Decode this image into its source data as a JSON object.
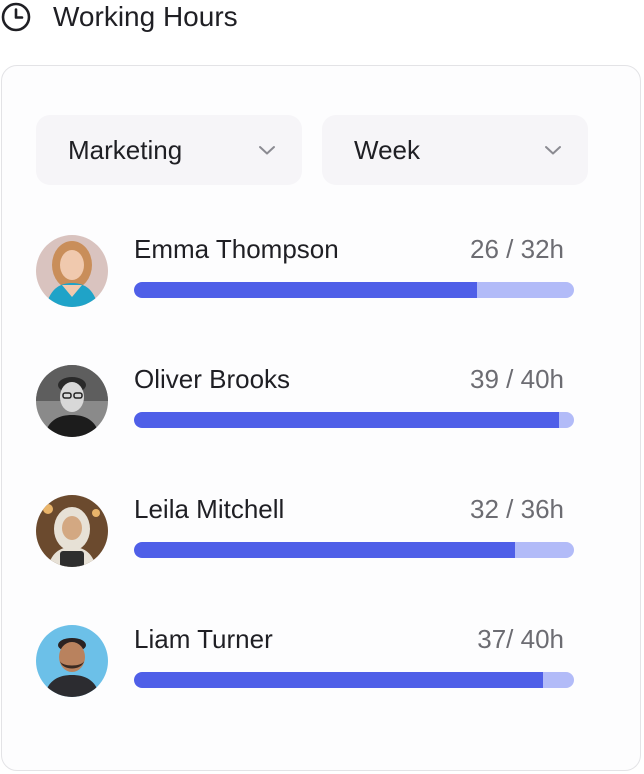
{
  "header": {
    "title": "Working Hours",
    "icon": "clock-icon"
  },
  "filters": {
    "department": {
      "value": "Marketing"
    },
    "period": {
      "value": "Week"
    }
  },
  "colors": {
    "accent": "#4f5fe8",
    "track": "#b2bbf8"
  },
  "people": [
    {
      "name": "Emma Thompson",
      "hours_text": "26 / 32h",
      "progress": 0.78
    },
    {
      "name": "Oliver Brooks",
      "hours_text": "39 / 40h",
      "progress": 0.965
    },
    {
      "name": "Leila Mitchell",
      "hours_text": "32 / 36h",
      "progress": 0.865
    },
    {
      "name": "Liam Turner",
      "hours_text": "37/ 40h",
      "progress": 0.93
    }
  ]
}
